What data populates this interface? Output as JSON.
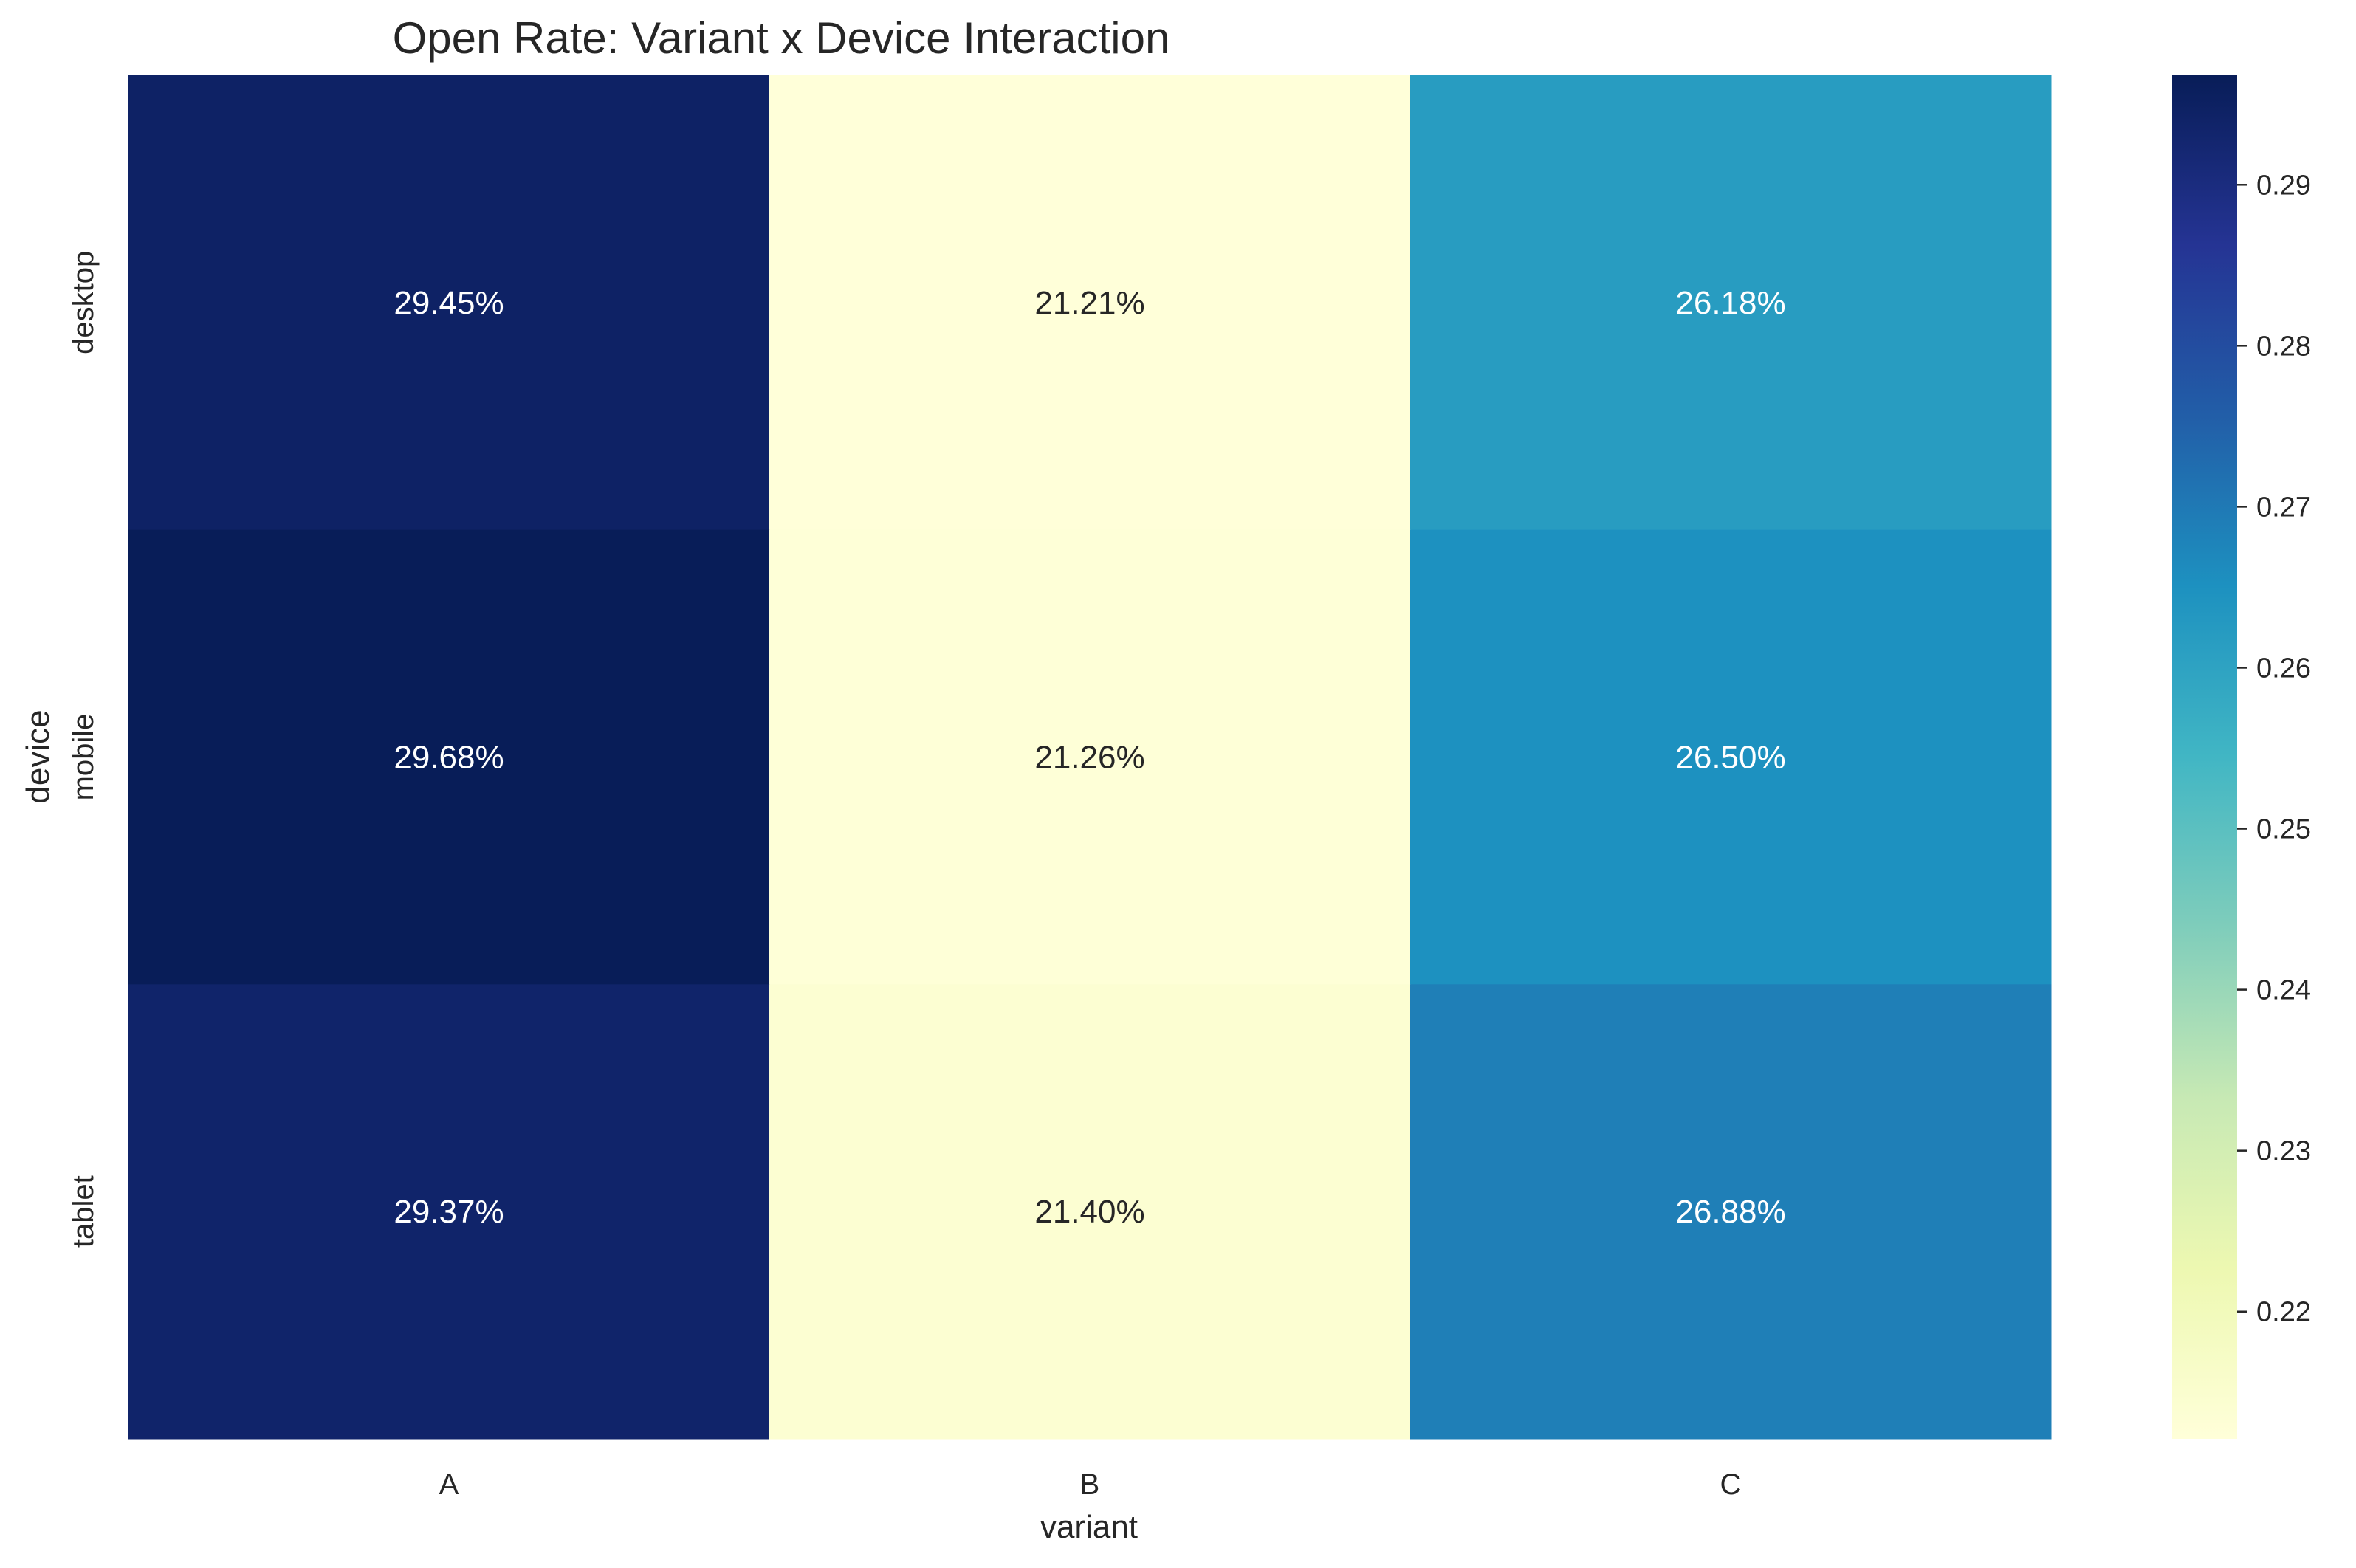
{
  "chart_data": {
    "type": "heatmap",
    "title": "Open Rate: Variant x Device Interaction",
    "xlabel": "variant",
    "ylabel": "device",
    "x_categories": [
      "A",
      "B",
      "C"
    ],
    "y_categories": [
      "desktop",
      "mobile",
      "tablet"
    ],
    "values": [
      [
        0.2945,
        0.2121,
        0.2618
      ],
      [
        0.2968,
        0.2126,
        0.265
      ],
      [
        0.2937,
        0.214,
        0.2688
      ]
    ],
    "cell_labels": [
      [
        "29.45%",
        "21.21%",
        "26.18%"
      ],
      [
        "29.68%",
        "21.26%",
        "26.50%"
      ],
      [
        "29.37%",
        "21.40%",
        "26.88%"
      ]
    ],
    "colormap": "YlGnBu",
    "color_stops": [
      "#ffffd9",
      "#edf8b1",
      "#c7e9b4",
      "#7fcdbb",
      "#41b6c4",
      "#1d91c0",
      "#225ea8",
      "#253494",
      "#081d58"
    ],
    "colorbar": {
      "vmin": 0.2121,
      "vmax": 0.2968,
      "ticks": [
        "0.22",
        "0.23",
        "0.24",
        "0.25",
        "0.26",
        "0.27",
        "0.28",
        "0.29"
      ]
    },
    "grid": false
  }
}
